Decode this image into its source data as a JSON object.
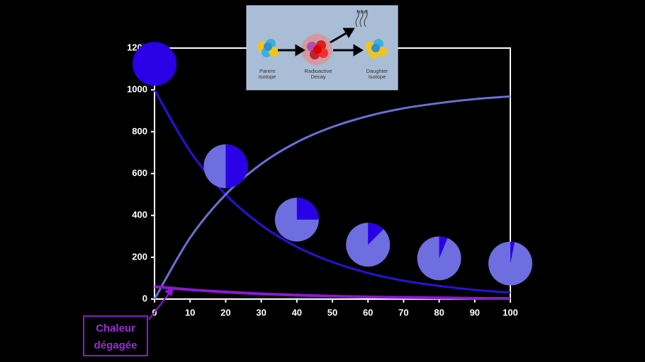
{
  "chart_data": {
    "type": "line",
    "x": [
      0,
      10,
      20,
      30,
      40,
      50,
      60,
      70,
      80,
      90,
      100
    ],
    "series": [
      {
        "name": "Parent",
        "color": "#2a10d8",
        "values": [
          1000,
          707,
          500,
          354,
          250,
          177,
          125,
          88,
          63,
          44,
          31
        ]
      },
      {
        "name": "Daughter",
        "color": "#6b6fd6",
        "values": [
          0,
          293,
          500,
          646,
          750,
          823,
          875,
          912,
          937,
          956,
          969
        ]
      },
      {
        "name": "Heat",
        "color": "#8a1ad0",
        "values": [
          60,
          45,
          34,
          25,
          19,
          14,
          10,
          8,
          6,
          4,
          3
        ]
      }
    ],
    "pies": {
      "x": [
        0,
        20,
        40,
        60,
        80,
        100
      ],
      "y": [
        1125,
        635,
        380,
        260,
        195,
        170
      ],
      "parent_share": [
        100,
        50,
        25,
        12.5,
        6.25,
        3.125
      ],
      "colors": [
        "#2a00e6",
        "#6e6ee0"
      ]
    },
    "xlim": [
      0,
      100
    ],
    "ylim": [
      0,
      1200
    ],
    "xticks": [
      0,
      10,
      20,
      30,
      40,
      50,
      60,
      70,
      80,
      90,
      100
    ],
    "yticks": [
      0,
      200,
      400,
      600,
      800,
      1000,
      1200
    ],
    "annotation": [
      "Chaleur",
      "dégagée"
    ]
  },
  "inset": {
    "heat": "Heat",
    "parent": [
      "Parent",
      "Isotope"
    ],
    "decay": [
      "Radioactive",
      "Decay"
    ],
    "daughter": [
      "Daughter",
      "Isotope"
    ]
  }
}
